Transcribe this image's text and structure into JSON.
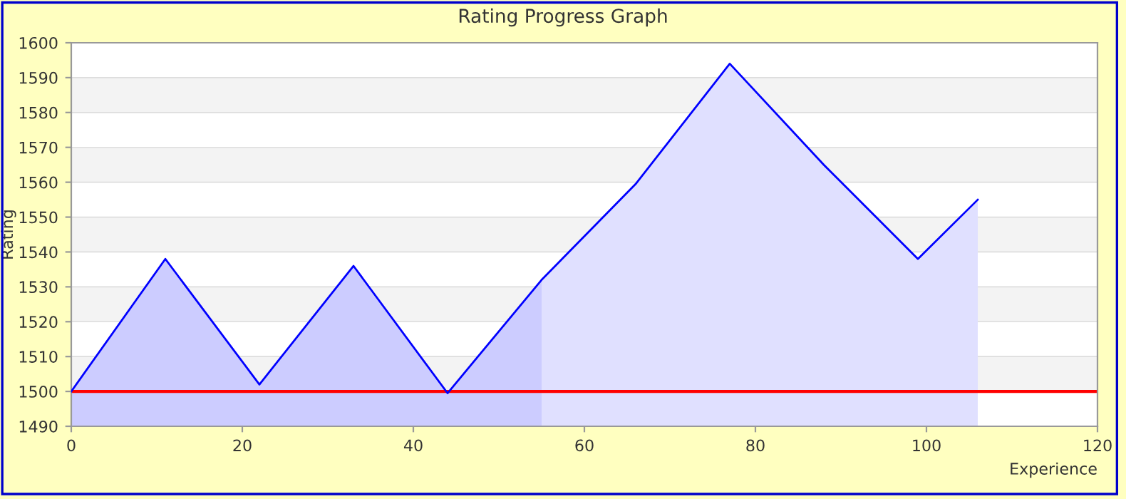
{
  "chart_data": {
    "type": "area",
    "title": "Rating Progress Graph",
    "xlabel": "Experience",
    "ylabel": "Rating",
    "series": [
      {
        "color": "#ccccff",
        "x": [
          0,
          11,
          22,
          33,
          44,
          55
        ],
        "values": [
          1500,
          1538,
          1502,
          1536,
          1499.5,
          1532
        ]
      },
      {
        "color": "#e0e0ff",
        "x": [
          55,
          66,
          77,
          88,
          99,
          106
        ],
        "values": [
          1532,
          1559.5,
          1594,
          1565,
          1538,
          1555
        ]
      },
      {
        "type": "line",
        "color": "#0000ff",
        "x": [
          0,
          11,
          22,
          33,
          44,
          55,
          66,
          77,
          88,
          99,
          106
        ],
        "values": [
          1500,
          1538,
          1502,
          1536,
          1499.5,
          1532,
          1559.5,
          1594,
          1565,
          1538,
          1555
        ]
      }
    ],
    "xlim": [
      0,
      120
    ],
    "xticks": [
      0,
      20,
      40,
      60,
      80,
      100,
      120
    ],
    "ylim": [
      1490,
      1600
    ],
    "yticks": [
      1490,
      1500,
      1510,
      1520,
      1530,
      1540,
      1550,
      1560,
      1570,
      1580,
      1590,
      1600
    ],
    "ref_lines": [
      {
        "axis": "y",
        "value": 1500,
        "label": null,
        "color": "#ff0000"
      }
    ],
    "grid": "y",
    "legend": false
  }
}
